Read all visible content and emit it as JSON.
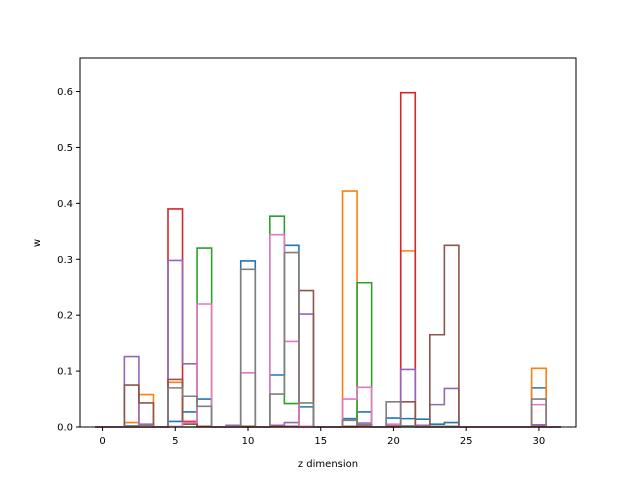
{
  "chart_data": {
    "type": "step-histogram",
    "xlabel": "z dimension",
    "ylabel": "w",
    "xlim": [
      -1.55,
      32.55
    ],
    "ylim": [
      0,
      0.66
    ],
    "xticks": [
      0,
      5,
      10,
      15,
      20,
      25,
      30
    ],
    "yticks": [
      0.0,
      0.1,
      0.2,
      0.3,
      0.4,
      0.5,
      0.6
    ],
    "bin_width": 1,
    "bin_left": -0.5,
    "series": [
      {
        "color": "#1f77b4",
        "values": [
          0,
          0,
          0.002,
          0.003,
          0,
          0.01,
          0.027,
          0.05,
          0,
          0.003,
          0.297,
          0,
          0.093,
          0.325,
          0.036,
          0,
          0,
          0.015,
          0.027,
          0,
          0.016,
          0.015,
          0.014,
          0.005,
          0.008,
          0,
          0,
          0,
          0,
          0,
          0.07,
          0
        ]
      },
      {
        "color": "#ff7f0e",
        "values": [
          0,
          0,
          0.008,
          0.058,
          0,
          0.08,
          0.005,
          0.001,
          0,
          0.001,
          0.001,
          0,
          0.001,
          0.001,
          0.001,
          0,
          0,
          0.422,
          0.001,
          0,
          0.001,
          0.315,
          0.001,
          0.001,
          0.001,
          0,
          0,
          0,
          0,
          0,
          0.105,
          0
        ]
      },
      {
        "color": "#2ca02c",
        "values": [
          0,
          0,
          0,
          0,
          0,
          0,
          0,
          0.32,
          0,
          0,
          0,
          0,
          0.377,
          0.042,
          0,
          0,
          0,
          0,
          0.258,
          0,
          0,
          0,
          0,
          0,
          0,
          0,
          0,
          0,
          0,
          0,
          0,
          0
        ]
      },
      {
        "color": "#d62728",
        "values": [
          0,
          0,
          0,
          0,
          0,
          0.39,
          0.01,
          0,
          0,
          0,
          0,
          0,
          0,
          0,
          0,
          0,
          0,
          0,
          0,
          0,
          0,
          0.598,
          0,
          0,
          0,
          0,
          0,
          0,
          0,
          0,
          0,
          0
        ]
      },
      {
        "color": "#9467bd",
        "values": [
          0,
          0,
          0.126,
          0.005,
          0,
          0.298,
          0.113,
          0.001,
          0,
          0.003,
          0.001,
          0,
          0.003,
          0.008,
          0.202,
          0,
          0,
          0.001,
          0.007,
          0,
          0.002,
          0.103,
          0.003,
          0.04,
          0.069,
          0,
          0,
          0,
          0,
          0,
          0.004,
          0
        ]
      },
      {
        "color": "#8c564b",
        "values": [
          0,
          0,
          0.075,
          0.043,
          0,
          0.085,
          0.005,
          0.001,
          0,
          0.001,
          0.001,
          0,
          0.001,
          0.001,
          0.244,
          0,
          0,
          0.001,
          0.001,
          0,
          0.001,
          0.045,
          0.001,
          0.165,
          0.325,
          0,
          0,
          0,
          0,
          0,
          0.001,
          0
        ]
      },
      {
        "color": "#e377c2",
        "values": [
          0,
          0,
          0.001,
          0.001,
          0,
          0.001,
          0.008,
          0.22,
          0,
          0.001,
          0.097,
          0,
          0.344,
          0.153,
          0.001,
          0,
          0,
          0.05,
          0.071,
          0,
          0.005,
          0.001,
          0.001,
          0.001,
          0.001,
          0,
          0,
          0,
          0,
          0,
          0.04,
          0
        ]
      },
      {
        "color": "#7f7f7f",
        "values": [
          0,
          0,
          0.001,
          0.003,
          0,
          0.07,
          0.055,
          0.037,
          0,
          0.001,
          0.282,
          0,
          0.059,
          0.312,
          0.043,
          0,
          0,
          0.012,
          0.004,
          0,
          0.045,
          0.002,
          0.001,
          0.001,
          0.001,
          0,
          0,
          0,
          0,
          0,
          0.05,
          0
        ]
      }
    ]
  }
}
